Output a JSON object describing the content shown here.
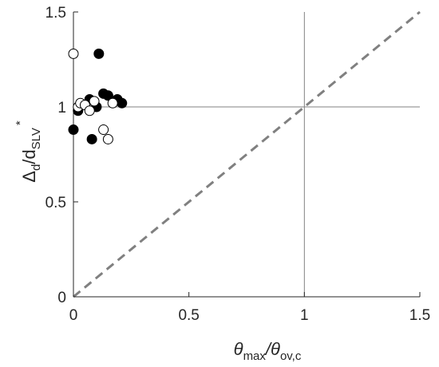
{
  "chart_data": {
    "type": "scatter",
    "title": "",
    "xlabel": {
      "symbol": "θ",
      "sub1": "max",
      "sep": "/θ",
      "sub2": "ov,c"
    },
    "ylabel": {
      "symbol": "Δ",
      "sub1": "d",
      "sep": "/d",
      "sub2": "SLV",
      "sup": "*"
    },
    "xlim": [
      0,
      1.5
    ],
    "ylim": [
      0,
      1.5
    ],
    "xticks": [
      {
        "value": 0,
        "label": "0"
      },
      {
        "value": 0.5,
        "label": "0.5"
      },
      {
        "value": 1,
        "label": "1"
      },
      {
        "value": 1.5,
        "label": "1.5"
      }
    ],
    "yticks": [
      {
        "value": 0,
        "label": "0"
      },
      {
        "value": 0.5,
        "label": "0.5"
      },
      {
        "value": 1,
        "label": "1"
      },
      {
        "value": 1.5,
        "label": "1.5"
      }
    ],
    "reference_lines": [
      {
        "kind": "diagonal",
        "from": [
          0,
          0
        ],
        "to": [
          1.5,
          1.5
        ],
        "style": "dashed",
        "color": "#808080"
      },
      {
        "kind": "horizontal",
        "value": 1,
        "color": "#808080"
      },
      {
        "kind": "vertical",
        "value": 1,
        "color": "#808080"
      }
    ],
    "series": [
      {
        "marker": "filled-circle",
        "color": "#000000",
        "points": [
          {
            "x": 0.0,
            "y": 0.88
          },
          {
            "x": 0.02,
            "y": 0.98
          },
          {
            "x": 0.07,
            "y": 1.04
          },
          {
            "x": 0.08,
            "y": 0.83
          },
          {
            "x": 0.1,
            "y": 1.0
          },
          {
            "x": 0.11,
            "y": 1.28
          },
          {
            "x": 0.13,
            "y": 1.07
          },
          {
            "x": 0.15,
            "y": 1.06
          },
          {
            "x": 0.19,
            "y": 1.04
          },
          {
            "x": 0.21,
            "y": 1.02
          }
        ]
      },
      {
        "marker": "open-circle",
        "color": "#000000",
        "points": [
          {
            "x": 0.0,
            "y": 1.28
          },
          {
            "x": 0.02,
            "y": 1.0
          },
          {
            "x": 0.03,
            "y": 1.02
          },
          {
            "x": 0.05,
            "y": 1.01
          },
          {
            "x": 0.07,
            "y": 0.98
          },
          {
            "x": 0.09,
            "y": 1.03
          },
          {
            "x": 0.13,
            "y": 0.88
          },
          {
            "x": 0.15,
            "y": 0.83
          },
          {
            "x": 0.17,
            "y": 1.02
          }
        ]
      }
    ]
  }
}
